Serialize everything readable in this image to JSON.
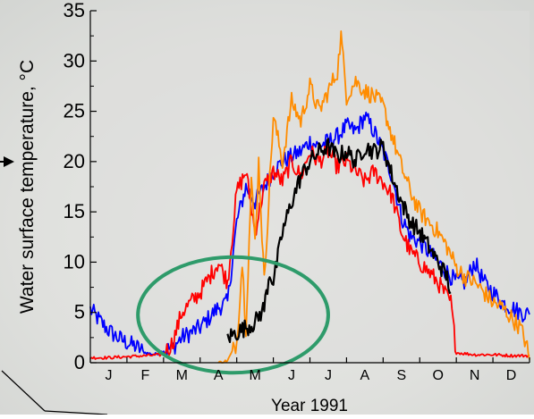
{
  "chart_data": {
    "type": "line",
    "title": "",
    "xlabel": "Year 1991",
    "ylabel": "Water surface temperature, °C",
    "ylim": [
      0,
      35
    ],
    "xlim": [
      0,
      12
    ],
    "yticks": [
      "0",
      "5",
      "10",
      "15",
      "20",
      "25",
      "30",
      "35"
    ],
    "categories": [
      "J",
      "F",
      "M",
      "A",
      "M",
      "J",
      "J",
      "A",
      "S",
      "O",
      "N",
      "D"
    ],
    "grid": false,
    "legend": "none",
    "x_unit": "month (0 = 1 January, 12 = 31 December)",
    "series": [
      {
        "color": "#0000ff",
        "x": [
          0.0,
          0.25,
          0.5,
          0.75,
          1.0,
          1.25,
          1.5,
          1.75,
          2.0,
          2.25,
          2.5,
          2.75,
          3.0,
          3.25,
          3.5,
          3.75,
          4.0,
          4.25,
          4.5,
          4.75,
          5.0,
          5.25,
          5.5,
          5.75,
          6.0,
          6.25,
          6.5,
          6.75,
          7.0,
          7.25,
          7.5,
          7.75,
          8.0,
          8.25,
          8.5,
          8.75,
          9.0,
          9.25,
          9.5,
          9.75,
          10.0,
          10.25,
          10.5,
          10.75,
          11.0,
          11.25,
          11.5,
          11.75,
          12.0
        ],
        "y": [
          5.3,
          4.2,
          3.2,
          2.5,
          2.0,
          1.6,
          1.0,
          0.8,
          1.2,
          1.5,
          2.5,
          3.0,
          3.5,
          4.5,
          5.5,
          6.0,
          14.0,
          17.5,
          16.0,
          17.5,
          19.0,
          20.0,
          20.5,
          21.0,
          22.0,
          21.5,
          22.0,
          22.5,
          23.5,
          23.0,
          24.5,
          23.0,
          21.0,
          18.5,
          14.5,
          12.5,
          12.0,
          11.0,
          10.0,
          9.0,
          8.0,
          8.0,
          10.0,
          8.0,
          7.0,
          6.0,
          5.5,
          5.0,
          4.8
        ]
      },
      {
        "color": "#ff0000",
        "x": [
          0.0,
          0.5,
          1.0,
          1.5,
          2.0,
          2.25,
          2.5,
          2.75,
          3.0,
          3.25,
          3.5,
          3.75,
          4.0,
          4.25,
          4.5,
          4.75,
          5.0,
          5.25,
          5.5,
          5.75,
          6.0,
          6.25,
          6.5,
          6.75,
          7.0,
          7.25,
          7.5,
          7.75,
          8.0,
          8.25,
          8.5,
          8.75,
          9.0,
          9.25,
          9.5,
          9.75,
          9.85,
          10.0,
          10.5,
          11.0,
          11.5,
          12.0
        ],
        "y": [
          0.5,
          0.5,
          0.6,
          0.7,
          0.8,
          2.0,
          5.0,
          6.0,
          7.0,
          8.5,
          10.0,
          8.0,
          17.0,
          19.0,
          13.0,
          17.5,
          19.0,
          18.0,
          20.0,
          18.5,
          21.0,
          20.0,
          21.0,
          19.5,
          20.0,
          19.0,
          18.0,
          19.0,
          18.0,
          16.5,
          13.0,
          11.0,
          10.0,
          9.0,
          8.0,
          6.5,
          6.0,
          1.0,
          0.8,
          0.8,
          0.7,
          0.7
        ]
      },
      {
        "color": "#ff8c00",
        "x": [
          3.5,
          3.75,
          4.0,
          4.15,
          4.25,
          4.4,
          4.5,
          4.6,
          4.75,
          5.0,
          5.25,
          5.5,
          5.75,
          6.0,
          6.25,
          6.5,
          6.75,
          6.85,
          7.0,
          7.25,
          7.5,
          7.75,
          8.0,
          8.25,
          8.5,
          8.75,
          9.0,
          9.25,
          9.5,
          9.75,
          10.0,
          10.25,
          10.5,
          10.75,
          11.0,
          11.25,
          11.5,
          11.75,
          11.9,
          12.0
        ],
        "y": [
          0.0,
          0.2,
          2.0,
          10.0,
          3.5,
          18.0,
          12.0,
          20.0,
          8.0,
          24.5,
          20.0,
          26.0,
          24.0,
          27.5,
          25.0,
          27.0,
          29.0,
          32.5,
          26.5,
          28.0,
          27.0,
          26.5,
          25.5,
          22.5,
          19.5,
          17.0,
          15.0,
          14.0,
          13.0,
          11.5,
          9.5,
          8.5,
          8.0,
          7.0,
          6.0,
          5.5,
          4.5,
          3.5,
          2.0,
          0.3
        ]
      },
      {
        "color": "#000000",
        "x": [
          3.75,
          4.0,
          4.25,
          4.5,
          4.75,
          4.9,
          5.0,
          5.25,
          5.5,
          5.75,
          6.0,
          6.25,
          6.5,
          6.75,
          7.0,
          7.25,
          7.5,
          7.75,
          8.0,
          8.25,
          8.5,
          8.75,
          9.0,
          9.25,
          9.5,
          9.75,
          9.85
        ],
        "y": [
          2.5,
          3.0,
          3.5,
          4.0,
          5.5,
          9.0,
          8.0,
          13.0,
          16.0,
          18.5,
          20.0,
          21.0,
          21.5,
          20.5,
          21.0,
          20.0,
          21.5,
          21.0,
          21.5,
          18.5,
          16.0,
          14.0,
          13.0,
          11.5,
          10.0,
          8.5,
          7.0
        ]
      }
    ],
    "annotations": [
      {
        "type": "ellipse",
        "color": "#2e9b6a",
        "x_range": [
          1.3,
          6.5
        ],
        "y_range": [
          -1.0,
          10.5
        ]
      }
    ]
  }
}
